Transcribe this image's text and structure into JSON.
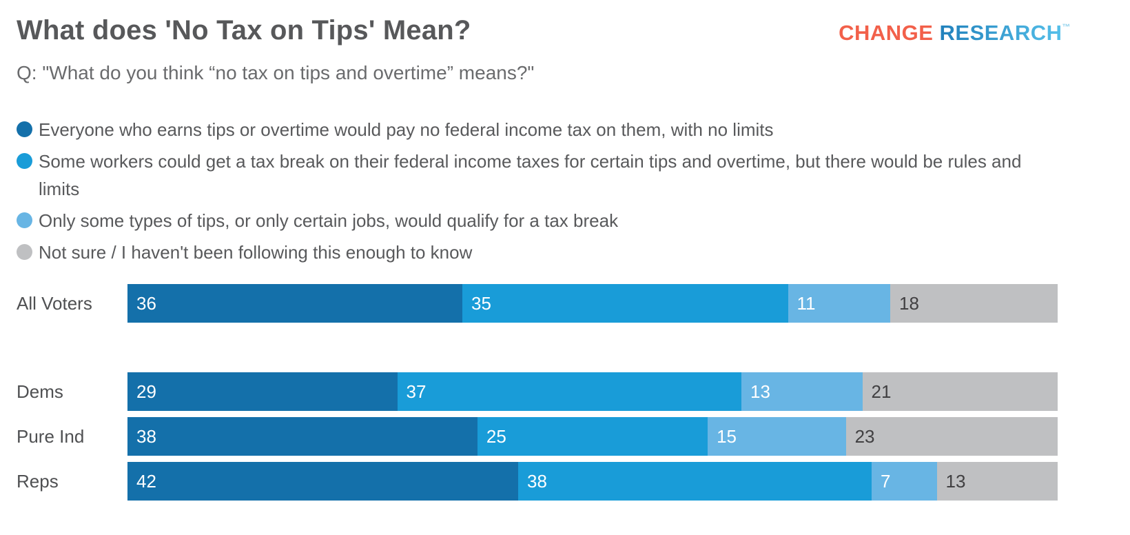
{
  "header": {
    "title": "What does 'No Tax on Tips' Mean?",
    "logo": {
      "part1": "CHANGE",
      "part2": " RESEARCH",
      "tm": "TM"
    }
  },
  "subtitle": "Q: \"What do you think “no tax on tips and overtime” means?\"",
  "colors": {
    "brand_orange": "#F2604A",
    "brand_blue": "#2E9CD6",
    "title_text": "#57585A",
    "body_text": "#58595B",
    "value_label_on_gray": "#414042"
  },
  "chart_data": {
    "type": "bar",
    "orientation": "horizontal",
    "stacked": true,
    "title": "What does 'No Tax on Tips' Mean?",
    "subtitle": "Q: \"What do you think “no tax on tips and overtime” means?\"",
    "categories": [
      "All Voters",
      "Dems",
      "Pure Ind",
      "Reps"
    ],
    "group_breaks": [
      0
    ],
    "series": [
      {
        "name": "Everyone who earns tips or overtime would pay no federal income tax on them, with no limits",
        "color": "#1470AA",
        "label_color": "#FFFFFF",
        "values": [
          36,
          29,
          38,
          42
        ]
      },
      {
        "name": "Some workers could get a tax break on their federal income taxes for certain tips and overtime, but there would be rules and limits",
        "color": "#199CD8",
        "label_color": "#FFFFFF",
        "values": [
          35,
          37,
          25,
          38
        ]
      },
      {
        "name": "Only some types of tips, or only certain jobs, would qualify for a tax break",
        "color": "#68B5E4",
        "label_color": "#FFFFFF",
        "values": [
          11,
          13,
          15,
          7
        ]
      },
      {
        "name": "Not sure / I haven't been following this enough to know",
        "color": "#BFC0C2",
        "label_color": "#414042",
        "values": [
          18,
          21,
          23,
          13
        ]
      }
    ],
    "xlim": [
      0,
      100
    ],
    "value_labels": "inside-start",
    "legend_position": "top-left",
    "grid": false
  }
}
